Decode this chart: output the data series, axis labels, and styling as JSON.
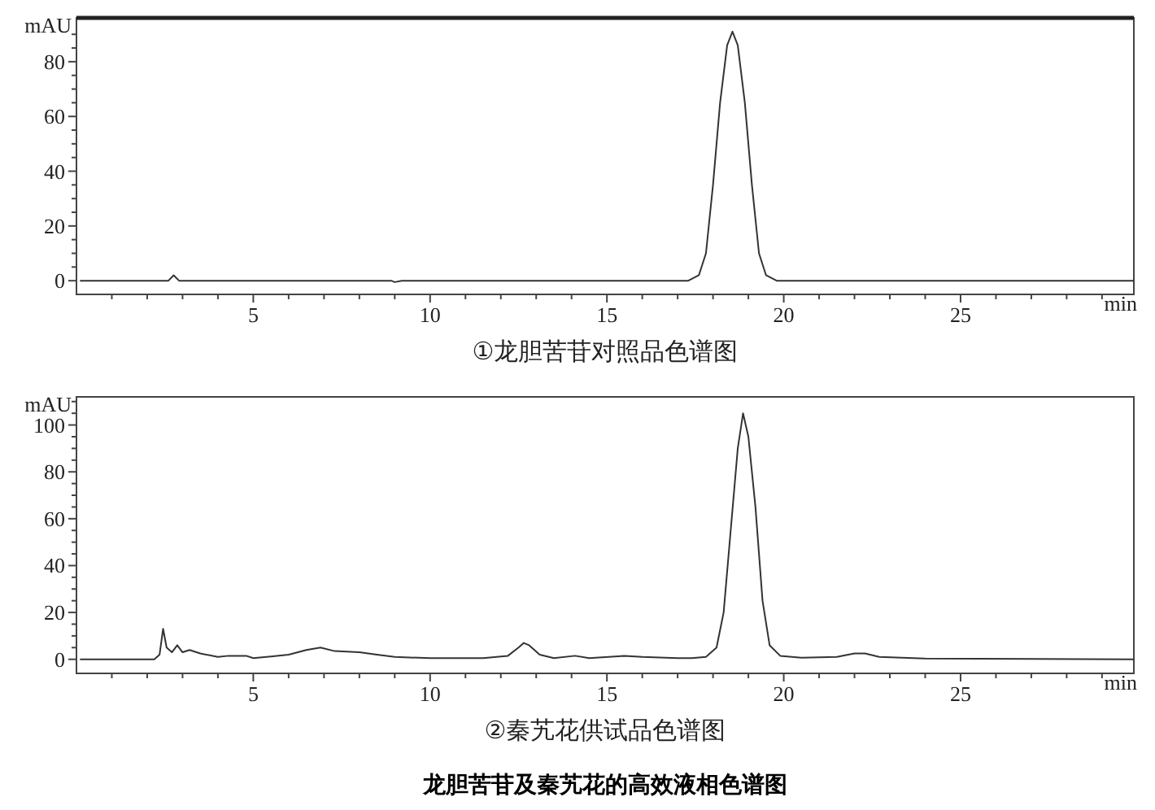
{
  "chart_data": [
    {
      "type": "line",
      "title": "①龙胆苦苷对照品色谱图",
      "xlabel": "min",
      "ylabel": "mAU",
      "xlim": [
        0,
        29.9
      ],
      "ylim": [
        -5,
        96
      ],
      "xticks": [
        {
          "value": 1,
          "label": null
        },
        {
          "value": 2,
          "label": null
        },
        {
          "value": 3,
          "label": null
        },
        {
          "value": 4,
          "label": null
        },
        5,
        {
          "value": 6,
          "label": null
        },
        {
          "value": 7,
          "label": null
        },
        {
          "value": 8,
          "label": null
        },
        {
          "value": 9,
          "label": null
        },
        10,
        {
          "value": 11,
          "label": null
        },
        {
          "value": 12,
          "label": null
        },
        {
          "value": 13,
          "label": null
        },
        {
          "value": 14,
          "label": null
        },
        15,
        {
          "value": 16,
          "label": null
        },
        {
          "value": 17,
          "label": null
        },
        {
          "value": 18,
          "label": null
        },
        {
          "value": 19,
          "label": null
        },
        20,
        {
          "value": 21,
          "label": null
        },
        {
          "value": 22,
          "label": null
        },
        {
          "value": 23,
          "label": null
        },
        {
          "value": 24,
          "label": null
        },
        25,
        {
          "value": 26,
          "label": null
        },
        {
          "value": 27,
          "label": null
        },
        {
          "value": 28,
          "label": null
        },
        {
          "value": 29,
          "label": null
        }
      ],
      "yticks": [
        0,
        {
          "value": 5,
          "label": null
        },
        {
          "value": 10,
          "label": null
        },
        {
          "value": 15,
          "label": null
        },
        20,
        {
          "value": 25,
          "label": null
        },
        {
          "value": 30,
          "label": null
        },
        {
          "value": 35,
          "label": null
        },
        40,
        {
          "value": 45,
          "label": null
        },
        {
          "value": 50,
          "label": null
        },
        {
          "value": 55,
          "label": null
        },
        60,
        {
          "value": 65,
          "label": null
        },
        {
          "value": 70,
          "label": null
        },
        {
          "value": 75,
          "label": null
        },
        80,
        {
          "value": 85,
          "label": null
        },
        {
          "value": 90,
          "label": null
        }
      ],
      "series": [
        {
          "color": "#333333",
          "x": [
            0.1,
            2.6,
            2.75,
            2.9,
            8.9,
            9.0,
            9.2,
            17.3,
            17.6,
            17.8,
            18.0,
            18.2,
            18.4,
            18.55,
            18.7,
            18.9,
            19.1,
            19.3,
            19.5,
            19.8,
            29.9
          ],
          "values": [
            0,
            0,
            2,
            0,
            0,
            -0.5,
            0,
            0,
            2,
            10,
            35,
            65,
            86,
            91,
            86,
            65,
            35,
            10,
            2,
            0,
            0
          ]
        }
      ]
    },
    {
      "type": "line",
      "title": "②秦艽花供试品色谱图",
      "xlabel": "min",
      "ylabel": "mAU",
      "xlim": [
        0,
        29.9
      ],
      "ylim": [
        -6,
        112
      ],
      "annotations": [
        "龙胆苦苷及秦艽花的高效液相色谱图"
      ],
      "xticks": [
        {
          "value": 1,
          "label": null
        },
        {
          "value": 2,
          "label": null
        },
        {
          "value": 3,
          "label": null
        },
        {
          "value": 4,
          "label": null
        },
        5,
        {
          "value": 6,
          "label": null
        },
        {
          "value": 7,
          "label": null
        },
        {
          "value": 8,
          "label": null
        },
        {
          "value": 9,
          "label": null
        },
        10,
        {
          "value": 11,
          "label": null
        },
        {
          "value": 12,
          "label": null
        },
        {
          "value": 13,
          "label": null
        },
        {
          "value": 14,
          "label": null
        },
        15,
        {
          "value": 16,
          "label": null
        },
        {
          "value": 17,
          "label": null
        },
        {
          "value": 18,
          "label": null
        },
        {
          "value": 19,
          "label": null
        },
        20,
        {
          "value": 21,
          "label": null
        },
        {
          "value": 22,
          "label": null
        },
        {
          "value": 23,
          "label": null
        },
        {
          "value": 24,
          "label": null
        },
        25,
        {
          "value": 26,
          "label": null
        },
        {
          "value": 27,
          "label": null
        },
        {
          "value": 28,
          "label": null
        },
        {
          "value": 29,
          "label": null
        }
      ],
      "yticks": [
        0,
        {
          "value": 5,
          "label": null
        },
        {
          "value": 10,
          "label": null
        },
        {
          "value": 15,
          "label": null
        },
        20,
        {
          "value": 25,
          "label": null
        },
        {
          "value": 30,
          "label": null
        },
        {
          "value": 35,
          "label": null
        },
        40,
        {
          "value": 45,
          "label": null
        },
        {
          "value": 50,
          "label": null
        },
        {
          "value": 55,
          "label": null
        },
        60,
        {
          "value": 65,
          "label": null
        },
        {
          "value": 70,
          "label": null
        },
        {
          "value": 75,
          "label": null
        },
        80,
        {
          "value": 85,
          "label": null
        },
        {
          "value": 90,
          "label": null
        },
        {
          "value": 95,
          "label": null
        },
        100,
        {
          "value": 105,
          "label": null
        },
        {
          "value": 110,
          "label": null
        }
      ],
      "series": [
        {
          "color": "#333333",
          "x": [
            0.1,
            2.2,
            2.35,
            2.45,
            2.55,
            2.7,
            2.85,
            3.0,
            3.2,
            3.5,
            4.0,
            4.3,
            4.8,
            5.0,
            5.5,
            6.0,
            6.5,
            6.9,
            7.3,
            8.0,
            8.5,
            9.0,
            10.0,
            11.5,
            12.2,
            12.5,
            12.65,
            12.8,
            13.1,
            13.5,
            14.1,
            14.5,
            15.5,
            16.0,
            17.0,
            17.4,
            17.8,
            18.1,
            18.3,
            18.5,
            18.7,
            18.85,
            19.0,
            19.2,
            19.4,
            19.6,
            19.9,
            20.5,
            21.5,
            22.0,
            22.3,
            22.7,
            24.0,
            29.9
          ],
          "values": [
            0,
            0,
            2,
            13,
            5,
            3,
            6,
            3,
            4,
            2.5,
            1,
            1.5,
            1.5,
            0.5,
            1.2,
            2,
            4,
            5,
            3.5,
            3,
            2,
            1,
            0.5,
            0.5,
            1.5,
            5,
            7,
            6,
            2,
            0.5,
            1.5,
            0.5,
            1.5,
            1,
            0.5,
            0.5,
            1,
            5,
            20,
            55,
            90,
            105,
            95,
            65,
            25,
            6,
            1.5,
            0.7,
            1,
            2.5,
            2.5,
            1,
            0.3,
            0
          ]
        }
      ]
    }
  ]
}
